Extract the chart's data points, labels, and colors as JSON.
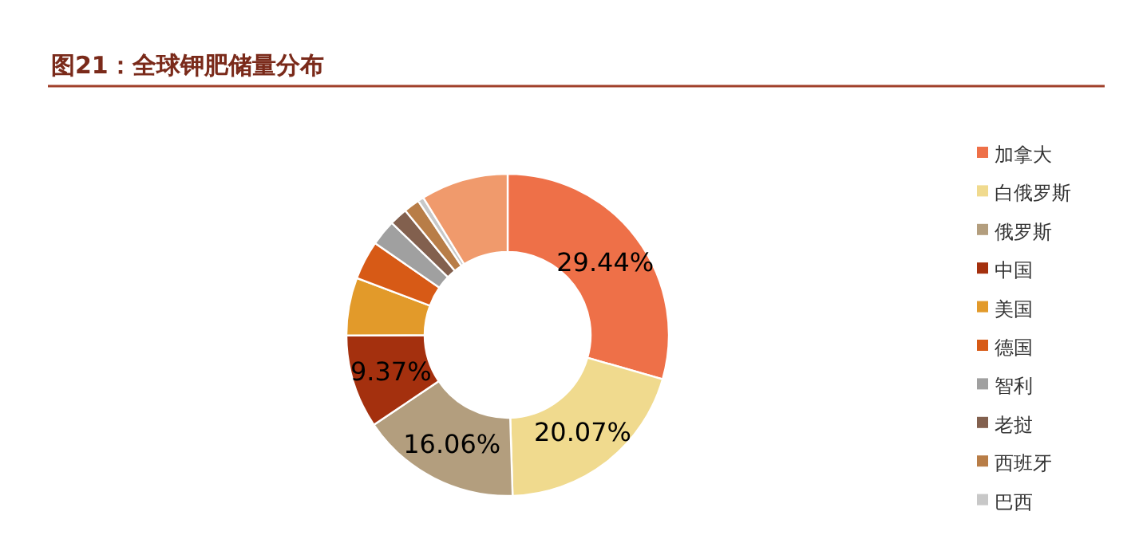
{
  "chart_data": {
    "type": "donut",
    "title": "图21：全球钾肥储量分布",
    "categories": [
      "加拿大",
      "白俄罗斯",
      "俄罗斯",
      "中国",
      "美国",
      "德国",
      "智利",
      "老挝",
      "西班牙",
      "巴西",
      null
    ],
    "values": [
      29.44,
      20.07,
      16.06,
      9.37,
      5.8,
      3.9,
      2.6,
      1.8,
      1.6,
      0.6,
      8.76
    ],
    "value_labels": [
      "29.44%",
      "20.07%",
      "16.06%",
      "9.37%",
      null,
      null,
      null,
      null,
      null,
      null,
      null
    ],
    "colors": [
      "#ee7048",
      "#f0da8e",
      "#b39e7e",
      "#a4300e",
      "#e29a2a",
      "#d75a16",
      "#a0a0a0",
      "#82604e",
      "#b87d47",
      "#c8c8c8",
      "#f09a6c"
    ],
    "legend": "right"
  }
}
